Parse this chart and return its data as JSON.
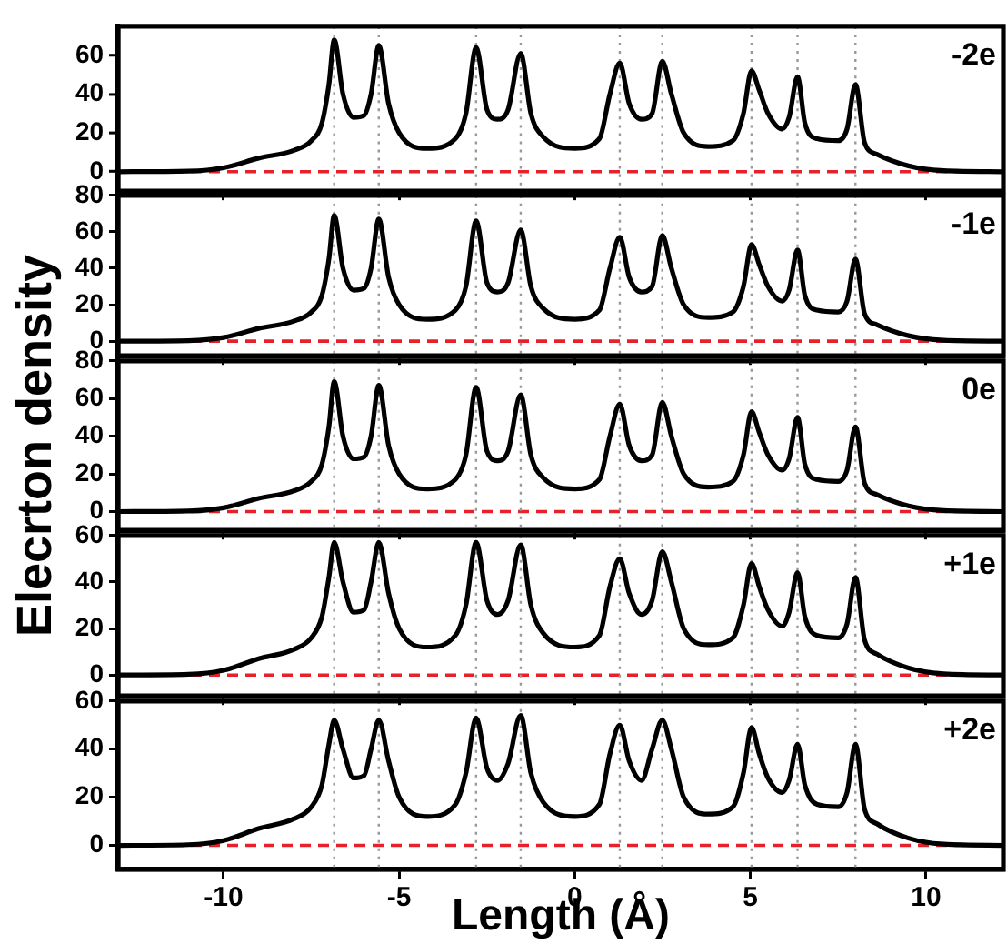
{
  "chart_data": [
    {
      "type": "line",
      "x": [
        -13,
        -11,
        -10,
        -9,
        -8,
        -7.5,
        -7.2,
        -7.0,
        -6.85,
        -6.6,
        -6.3,
        -6.0,
        -5.8,
        -5.58,
        -5.3,
        -5.0,
        -4.2,
        -3.4,
        -3.1,
        -2.81,
        -2.5,
        -2.2,
        -1.9,
        -1.54,
        -1.25,
        -0.9,
        0,
        0.7,
        1.0,
        1.28,
        1.55,
        1.9,
        2.2,
        2.49,
        2.75,
        3.1,
        3.8,
        4.5,
        4.8,
        5.03,
        5.25,
        5.5,
        5.9,
        6.1,
        6.34,
        6.55,
        6.9,
        7.5,
        7.75,
        7.99,
        8.25,
        8.6,
        9.5,
        10.5,
        12.2
      ],
      "series": [
        {
          "color": "#000000",
          "values": [
            0,
            0.3,
            2,
            7,
            11,
            16,
            25,
            45,
            68,
            40,
            28,
            29,
            40,
            65,
            35,
            20,
            12,
            17,
            30,
            64,
            32,
            27,
            32,
            61,
            30,
            18,
            12,
            17,
            40,
            56,
            35,
            27,
            30,
            57,
            40,
            20,
            13,
            16,
            30,
            52,
            42,
            30,
            22,
            28,
            49,
            25,
            17,
            16,
            22,
            45,
            15,
            9,
            3,
            0.5,
            0
          ]
        }
      ],
      "xlim": [
        -13,
        12.2
      ],
      "xticks": [
        -10,
        -5,
        0,
        5,
        10
      ],
      "ylim": [
        -10,
        75
      ],
      "yticks": [
        0,
        20,
        40,
        60
      ],
      "tick_labels": "y",
      "legend": false,
      "marker": "none",
      "line_style": "solid",
      "ref_lines": [
        {
          "axis": "y",
          "value": 0,
          "color": "#e8202a",
          "line_style": "dashed"
        },
        {
          "axis": "x",
          "value": -6.85,
          "color": "#999999",
          "line_style": "dotted"
        },
        {
          "axis": "x",
          "value": -5.58,
          "color": "#999999",
          "line_style": "dotted"
        },
        {
          "axis": "x",
          "value": -2.81,
          "color": "#999999",
          "line_style": "dotted"
        },
        {
          "axis": "x",
          "value": -1.54,
          "color": "#999999",
          "line_style": "dotted"
        },
        {
          "axis": "x",
          "value": 1.28,
          "color": "#999999",
          "line_style": "dotted"
        },
        {
          "axis": "x",
          "value": 2.49,
          "color": "#999999",
          "line_style": "dotted"
        },
        {
          "axis": "x",
          "value": 5.03,
          "color": "#999999",
          "line_style": "dotted"
        },
        {
          "axis": "x",
          "value": 6.34,
          "color": "#999999",
          "line_style": "dotted"
        },
        {
          "axis": "x",
          "value": 7.99,
          "color": "#999999",
          "line_style": "dotted"
        }
      ],
      "annotations": [
        "-2e"
      ]
    },
    {
      "type": "line",
      "x": [
        -13,
        -11,
        -10,
        -9,
        -8,
        -7.5,
        -7.2,
        -7.0,
        -6.85,
        -6.6,
        -6.3,
        -6.0,
        -5.8,
        -5.58,
        -5.3,
        -5.0,
        -4.2,
        -3.4,
        -3.1,
        -2.81,
        -2.5,
        -2.2,
        -1.9,
        -1.54,
        -1.25,
        -0.9,
        0,
        0.7,
        1.0,
        1.28,
        1.55,
        1.9,
        2.2,
        2.49,
        2.75,
        3.1,
        3.8,
        4.5,
        4.8,
        5.03,
        5.25,
        5.5,
        5.9,
        6.1,
        6.34,
        6.55,
        6.9,
        7.5,
        7.75,
        7.99,
        8.25,
        8.6,
        9.5,
        10.5,
        12.2
      ],
      "series": [
        {
          "color": "#000000",
          "values": [
            0,
            0.3,
            2,
            7,
            11,
            16,
            25,
            45,
            69,
            40,
            28,
            29,
            40,
            67,
            35,
            20,
            12,
            17,
            30,
            66,
            32,
            27,
            32,
            61,
            30,
            18,
            12,
            17,
            40,
            57,
            35,
            27,
            30,
            58,
            40,
            20,
            13,
            16,
            30,
            53,
            42,
            30,
            22,
            28,
            50,
            25,
            17,
            16,
            22,
            45,
            15,
            9,
            3,
            0.5,
            0
          ]
        }
      ],
      "xlim": [
        -13,
        12.2
      ],
      "xticks": [
        -10,
        -5,
        0,
        5,
        10
      ],
      "ylim": [
        -8,
        80
      ],
      "yticks": [
        0,
        20,
        40,
        60,
        80
      ],
      "tick_labels": "y",
      "legend": false,
      "marker": "none",
      "line_style": "solid",
      "ref_lines": [
        {
          "axis": "y",
          "value": 0,
          "color": "#e8202a",
          "line_style": "dashed"
        },
        {
          "axis": "x",
          "value": -6.85,
          "color": "#999999",
          "line_style": "dotted"
        },
        {
          "axis": "x",
          "value": -5.58,
          "color": "#999999",
          "line_style": "dotted"
        },
        {
          "axis": "x",
          "value": -2.81,
          "color": "#999999",
          "line_style": "dotted"
        },
        {
          "axis": "x",
          "value": -1.54,
          "color": "#999999",
          "line_style": "dotted"
        },
        {
          "axis": "x",
          "value": 1.28,
          "color": "#999999",
          "line_style": "dotted"
        },
        {
          "axis": "x",
          "value": 2.49,
          "color": "#999999",
          "line_style": "dotted"
        },
        {
          "axis": "x",
          "value": 5.03,
          "color": "#999999",
          "line_style": "dotted"
        },
        {
          "axis": "x",
          "value": 6.34,
          "color": "#999999",
          "line_style": "dotted"
        },
        {
          "axis": "x",
          "value": 7.99,
          "color": "#999999",
          "line_style": "dotted"
        }
      ],
      "annotations": [
        "-1e"
      ]
    },
    {
      "type": "line",
      "x": [
        -13,
        -11,
        -10,
        -9,
        -8,
        -7.5,
        -7.2,
        -7.0,
        -6.85,
        -6.6,
        -6.3,
        -6.0,
        -5.8,
        -5.58,
        -5.3,
        -5.0,
        -4.2,
        -3.4,
        -3.1,
        -2.81,
        -2.5,
        -2.2,
        -1.9,
        -1.54,
        -1.25,
        -0.9,
        0,
        0.7,
        1.0,
        1.28,
        1.55,
        1.9,
        2.2,
        2.49,
        2.75,
        3.1,
        3.8,
        4.5,
        4.8,
        5.03,
        5.25,
        5.5,
        5.9,
        6.1,
        6.34,
        6.55,
        6.9,
        7.5,
        7.75,
        7.99,
        8.25,
        8.6,
        9.5,
        10.5,
        12.2
      ],
      "series": [
        {
          "color": "#000000",
          "values": [
            0,
            0.3,
            2,
            7,
            11,
            16,
            25,
            45,
            69,
            40,
            28,
            29,
            40,
            67,
            35,
            20,
            12,
            17,
            30,
            66,
            32,
            27,
            32,
            62,
            30,
            18,
            12,
            17,
            40,
            57,
            35,
            27,
            30,
            58,
            40,
            20,
            13,
            16,
            30,
            53,
            42,
            30,
            22,
            28,
            50,
            25,
            17,
            16,
            22,
            45,
            15,
            9,
            3,
            0.5,
            0
          ]
        }
      ],
      "xlim": [
        -13,
        12.2
      ],
      "xticks": [
        -10,
        -5,
        0,
        5,
        10
      ],
      "ylim": [
        -10,
        80
      ],
      "yticks": [
        0,
        20,
        40,
        60,
        80
      ],
      "tick_labels": "y",
      "legend": false,
      "marker": "none",
      "line_style": "solid",
      "ylabel": "Elecrton density",
      "ref_lines": [
        {
          "axis": "y",
          "value": 0,
          "color": "#e8202a",
          "line_style": "dashed"
        },
        {
          "axis": "x",
          "value": -6.85,
          "color": "#999999",
          "line_style": "dotted"
        },
        {
          "axis": "x",
          "value": -5.58,
          "color": "#999999",
          "line_style": "dotted"
        },
        {
          "axis": "x",
          "value": -2.81,
          "color": "#999999",
          "line_style": "dotted"
        },
        {
          "axis": "x",
          "value": -1.54,
          "color": "#999999",
          "line_style": "dotted"
        },
        {
          "axis": "x",
          "value": 1.28,
          "color": "#999999",
          "line_style": "dotted"
        },
        {
          "axis": "x",
          "value": 2.49,
          "color": "#999999",
          "line_style": "dotted"
        },
        {
          "axis": "x",
          "value": 5.03,
          "color": "#999999",
          "line_style": "dotted"
        },
        {
          "axis": "x",
          "value": 6.34,
          "color": "#999999",
          "line_style": "dotted"
        },
        {
          "axis": "x",
          "value": 7.99,
          "color": "#999999",
          "line_style": "dotted"
        }
      ],
      "annotations": [
        "0e"
      ]
    },
    {
      "type": "line",
      "x": [
        -13,
        -11,
        -10,
        -9,
        -8,
        -7.5,
        -7.2,
        -7.0,
        -6.85,
        -6.6,
        -6.3,
        -6.0,
        -5.8,
        -5.58,
        -5.3,
        -5.0,
        -4.2,
        -3.4,
        -3.1,
        -2.81,
        -2.5,
        -2.2,
        -1.9,
        -1.54,
        -1.25,
        -0.9,
        0,
        0.7,
        1.0,
        1.28,
        1.55,
        1.9,
        2.2,
        2.49,
        2.75,
        3.1,
        3.8,
        4.5,
        4.8,
        5.03,
        5.25,
        5.5,
        5.9,
        6.1,
        6.34,
        6.55,
        6.9,
        7.5,
        7.75,
        7.99,
        8.25,
        8.6,
        9.5,
        10.5,
        12.2
      ],
      "series": [
        {
          "color": "#000000",
          "values": [
            0,
            0.3,
            2,
            7,
            11,
            16,
            25,
            42,
            57,
            40,
            27,
            28,
            40,
            57,
            35,
            20,
            12,
            17,
            30,
            57,
            32,
            26,
            32,
            56,
            30,
            18,
            12,
            17,
            38,
            50,
            35,
            26,
            32,
            53,
            40,
            20,
            13,
            16,
            30,
            48,
            38,
            28,
            21,
            27,
            44,
            25,
            17,
            16,
            22,
            42,
            15,
            9,
            3,
            0.5,
            0
          ]
        }
      ],
      "xlim": [
        -13,
        12.2
      ],
      "xticks": [
        -10,
        -5,
        0,
        5,
        10
      ],
      "ylim": [
        -9,
        60
      ],
      "yticks": [
        0,
        20,
        40,
        60
      ],
      "tick_labels": "y",
      "legend": false,
      "marker": "none",
      "line_style": "solid",
      "ref_lines": [
        {
          "axis": "y",
          "value": 0,
          "color": "#e8202a",
          "line_style": "dashed"
        },
        {
          "axis": "x",
          "value": -6.85,
          "color": "#999999",
          "line_style": "dotted"
        },
        {
          "axis": "x",
          "value": -5.58,
          "color": "#999999",
          "line_style": "dotted"
        },
        {
          "axis": "x",
          "value": -2.81,
          "color": "#999999",
          "line_style": "dotted"
        },
        {
          "axis": "x",
          "value": -1.54,
          "color": "#999999",
          "line_style": "dotted"
        },
        {
          "axis": "x",
          "value": 1.28,
          "color": "#999999",
          "line_style": "dotted"
        },
        {
          "axis": "x",
          "value": 2.49,
          "color": "#999999",
          "line_style": "dotted"
        },
        {
          "axis": "x",
          "value": 5.03,
          "color": "#999999",
          "line_style": "dotted"
        },
        {
          "axis": "x",
          "value": 6.34,
          "color": "#999999",
          "line_style": "dotted"
        },
        {
          "axis": "x",
          "value": 7.99,
          "color": "#999999",
          "line_style": "dotted"
        }
      ],
      "annotations": [
        "+1e"
      ]
    },
    {
      "type": "line",
      "x": [
        -13,
        -11,
        -10,
        -9,
        -8,
        -7.5,
        -7.2,
        -7.0,
        -6.85,
        -6.6,
        -6.3,
        -6.0,
        -5.8,
        -5.58,
        -5.3,
        -5.0,
        -4.2,
        -3.4,
        -3.1,
        -2.81,
        -2.5,
        -2.2,
        -1.9,
        -1.54,
        -1.25,
        -0.9,
        0,
        0.7,
        1.0,
        1.28,
        1.55,
        1.9,
        2.2,
        2.49,
        2.75,
        3.1,
        3.8,
        4.5,
        4.8,
        5.03,
        5.25,
        5.5,
        5.9,
        6.1,
        6.34,
        6.55,
        6.9,
        7.5,
        7.75,
        7.99,
        8.25,
        8.6,
        9.5,
        10.5,
        12.2
      ],
      "series": [
        {
          "color": "#000000",
          "values": [
            0,
            0.3,
            2,
            7,
            11,
            16,
            25,
            42,
            52,
            40,
            28,
            29,
            40,
            52,
            35,
            20,
            12,
            17,
            30,
            53,
            32,
            27,
            34,
            54,
            30,
            18,
            12,
            17,
            38,
            50,
            35,
            27,
            40,
            52,
            40,
            20,
            13,
            16,
            30,
            49,
            38,
            28,
            22,
            27,
            42,
            25,
            17,
            16,
            22,
            42,
            15,
            9,
            3,
            0.5,
            0
          ]
        }
      ],
      "xlim": [
        -13,
        12.2
      ],
      "xticks": [
        -10,
        -5,
        0,
        5,
        10
      ],
      "ylim": [
        -10,
        60
      ],
      "yticks": [
        0,
        20,
        40,
        60
      ],
      "legend": false,
      "marker": "none",
      "line_style": "solid",
      "xlabel": "Length (Å)",
      "ref_lines": [
        {
          "axis": "y",
          "value": 0,
          "color": "#e8202a",
          "line_style": "dashed"
        },
        {
          "axis": "x",
          "value": -6.85,
          "color": "#999999",
          "line_style": "dotted"
        },
        {
          "axis": "x",
          "value": -5.58,
          "color": "#999999",
          "line_style": "dotted"
        },
        {
          "axis": "x",
          "value": -2.81,
          "color": "#999999",
          "line_style": "dotted"
        },
        {
          "axis": "x",
          "value": -1.54,
          "color": "#999999",
          "line_style": "dotted"
        },
        {
          "axis": "x",
          "value": 1.28,
          "color": "#999999",
          "line_style": "dotted"
        },
        {
          "axis": "x",
          "value": 2.49,
          "color": "#999999",
          "line_style": "dotted"
        },
        {
          "axis": "x",
          "value": 5.03,
          "color": "#999999",
          "line_style": "dotted"
        },
        {
          "axis": "x",
          "value": 6.34,
          "color": "#999999",
          "line_style": "dotted"
        },
        {
          "axis": "x",
          "value": 7.99,
          "color": "#999999",
          "line_style": "dotted"
        }
      ],
      "annotations": [
        "+2e"
      ]
    }
  ]
}
